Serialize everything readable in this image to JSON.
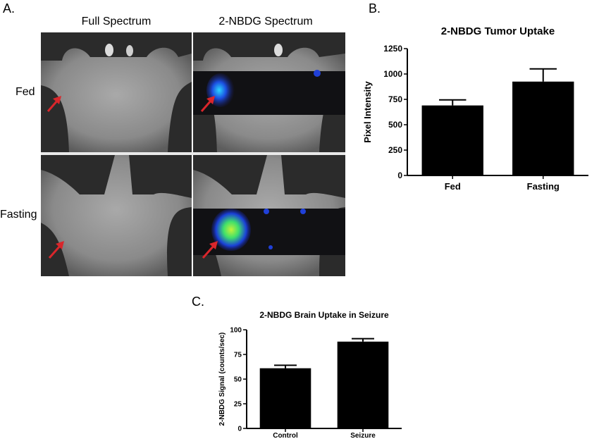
{
  "panel_a": {
    "letter": "A.",
    "col_headers": [
      "Full Spectrum",
      "2-NBDG Spectrum"
    ],
    "row_labels": [
      "Fed",
      "Fasting"
    ]
  },
  "panel_b_letter": "B.",
  "panel_c_letter": "C.",
  "colors": {
    "bar": "#000000",
    "arrow": "#d9262b",
    "heat_low": "#1a2fd1",
    "heat_high": "#4fe04a"
  },
  "chart_data": [
    {
      "type": "bar",
      "title": "2-NBDG Tumor Uptake",
      "ylabel": "Pixel Intensity",
      "xlabel": "",
      "categories": [
        "Fed",
        "Fasting"
      ],
      "values": [
        690,
        925
      ],
      "errors": [
        55,
        125
      ],
      "ylim": [
        0,
        1250
      ],
      "yticks": [
        0,
        250,
        500,
        750,
        1000,
        1250
      ],
      "ytick_labels": [
        "0",
        "250",
        "500",
        "750",
        "1000",
        "1250"
      ]
    },
    {
      "type": "bar",
      "title": "2-NBDG Brain Uptake in Seizure",
      "ylabel": "2-NBDG Signal (counts/sec)",
      "xlabel": "",
      "categories": [
        "Control",
        "Seizure"
      ],
      "values": [
        61,
        88
      ],
      "errors": [
        3,
        3
      ],
      "ylim": [
        0,
        100
      ],
      "yticks": [
        0,
        25,
        50,
        75,
        100
      ],
      "ytick_labels": [
        "0",
        "25",
        "50",
        "75",
        "100"
      ]
    }
  ]
}
